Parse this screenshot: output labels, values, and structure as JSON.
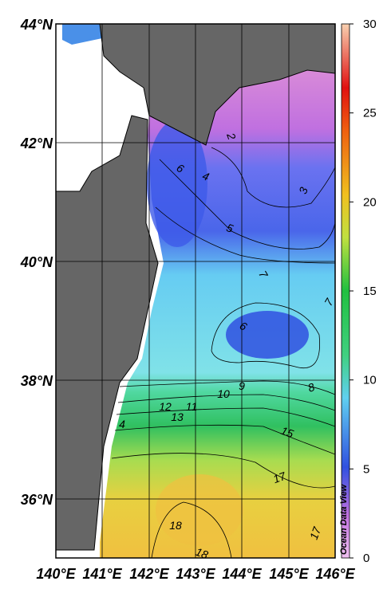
{
  "map": {
    "lat_labels": [
      "44°N",
      "42°N",
      "40°N",
      "38°N",
      "36°N"
    ],
    "lon_labels": [
      "140°E",
      "141°E",
      "142°E",
      "143°E",
      "144°E",
      "145°E",
      "146°E"
    ],
    "colorbar": {
      "range": [
        0,
        30
      ],
      "ticks": [
        0,
        5,
        10,
        15,
        20,
        25,
        30
      ]
    },
    "contour_labels": [
      2,
      3,
      4,
      5,
      6,
      7,
      6,
      7,
      9,
      10,
      8,
      11,
      12,
      13,
      4,
      15,
      17,
      18,
      17,
      18
    ],
    "credit": "Ocean Data View"
  }
}
